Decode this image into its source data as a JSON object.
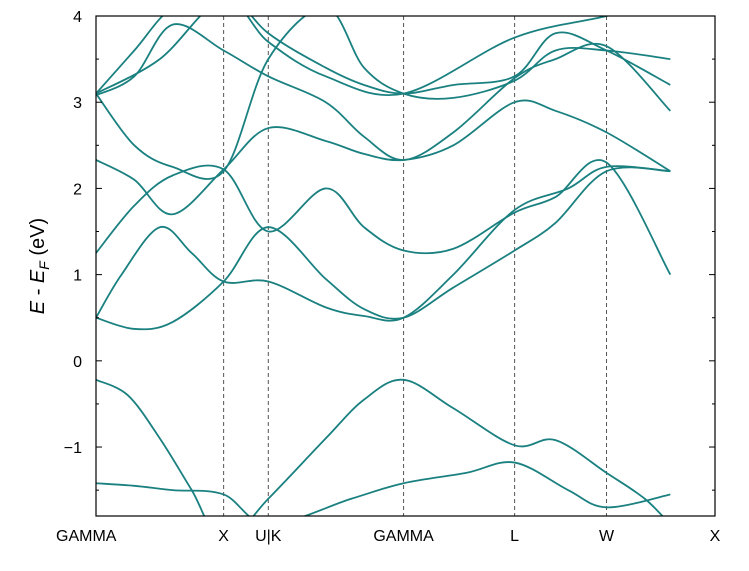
{
  "chart_data": {
    "type": "line",
    "title": "",
    "xlabel": "",
    "ylabel": "E - E_F (eV)",
    "ylabel_parts": {
      "e": "E",
      "sep": " - ",
      "ef": "E",
      "sub": "F",
      "unit": " (eV)"
    },
    "ylim": [
      -1.8,
      4.0
    ],
    "yticks": [
      -1,
      0,
      1,
      2,
      3,
      4
    ],
    "ytick_labels": [
      "−1",
      "0",
      "1",
      "2",
      "3",
      "4"
    ],
    "xlim": [
      0,
      4.85
    ],
    "kpoints": [
      {
        "label": "GAMMA",
        "x": 0.0
      },
      {
        "label": "X",
        "x": 1.0
      },
      {
        "label": "U|K",
        "x": 1.35
      },
      {
        "label": "GAMMA",
        "x": 2.41
      },
      {
        "label": "L",
        "x": 3.28
      },
      {
        "label": "W",
        "x": 4.0
      },
      {
        "label": "X",
        "x": 4.5
      }
    ],
    "vlines_at": [
      1.0,
      1.35,
      2.41,
      3.28,
      4.0
    ],
    "grid": false,
    "line_color": "#1a8080",
    "series": [
      {
        "x": [
          0,
          0.25,
          0.5,
          0.75,
          1.0,
          1.35,
          1.8,
          2.1,
          2.41,
          2.8,
          3.28,
          3.6,
          4.0,
          4.3,
          4.5
        ],
        "y": [
          -0.22,
          -0.4,
          -0.9,
          -1.5,
          -2.1,
          -1.6,
          -0.9,
          -0.45,
          -0.22,
          -0.55,
          -0.98,
          -0.92,
          -1.3,
          -1.6,
          -1.9
        ]
      },
      {
        "x": [
          0,
          0.3,
          0.6,
          1.0,
          1.35,
          2.0,
          2.41,
          2.9,
          3.28,
          3.7,
          4.0,
          4.5
        ],
        "y": [
          -1.42,
          -1.45,
          -1.5,
          -1.55,
          -1.9,
          -1.6,
          -1.42,
          -1.3,
          -1.18,
          -1.5,
          -1.7,
          -1.55
        ]
      },
      {
        "x": [
          0,
          0.3,
          0.6,
          1.0,
          1.35,
          1.8,
          2.1,
          2.41,
          2.8,
          3.28,
          3.6,
          4.0,
          4.5
        ],
        "y": [
          0.5,
          0.37,
          0.45,
          0.92,
          1.55,
          0.95,
          0.6,
          0.5,
          0.85,
          1.28,
          1.6,
          2.2,
          2.2
        ]
      },
      {
        "x": [
          0,
          0.2,
          0.5,
          0.75,
          1.0,
          1.35,
          1.8,
          2.1,
          2.41,
          2.8,
          3.28,
          3.7,
          4.0,
          4.5
        ],
        "y": [
          0.5,
          1.0,
          1.55,
          1.25,
          0.92,
          0.92,
          0.62,
          0.52,
          0.5,
          1.0,
          1.75,
          2.0,
          2.25,
          2.2
        ]
      },
      {
        "x": [
          0,
          0.3,
          0.6,
          1.0,
          1.35,
          1.8,
          2.1,
          2.41,
          2.8,
          3.28,
          3.6,
          4.0,
          4.5
        ],
        "y": [
          1.25,
          1.8,
          2.15,
          2.22,
          1.5,
          2.0,
          1.55,
          1.28,
          1.3,
          1.72,
          1.9,
          2.3,
          1.0
        ]
      },
      {
        "x": [
          0,
          0.3,
          0.6,
          1.0,
          1.35,
          1.8,
          2.1,
          2.41,
          2.8,
          3.28,
          3.6,
          4.0,
          4.5
        ],
        "y": [
          2.33,
          2.1,
          1.7,
          2.22,
          2.7,
          2.55,
          2.4,
          2.33,
          2.5,
          3.0,
          2.9,
          2.65,
          2.2
        ]
      },
      {
        "x": [
          0,
          0.3,
          0.6,
          1.0,
          1.35,
          1.8,
          2.1,
          2.41,
          2.8,
          3.28,
          3.6,
          4.0,
          4.5
        ],
        "y": [
          3.08,
          3.3,
          3.9,
          3.6,
          3.3,
          3.0,
          2.6,
          2.33,
          2.65,
          3.28,
          3.5,
          3.65,
          2.9
        ]
      },
      {
        "x": [
          0,
          0.3,
          0.6,
          1.0,
          1.35,
          1.8,
          2.1,
          2.41,
          2.8,
          3.28,
          3.6,
          4.0,
          4.5
        ],
        "y": [
          3.1,
          3.6,
          4.1,
          4.3,
          3.8,
          3.4,
          3.2,
          3.1,
          3.2,
          3.3,
          3.8,
          3.6,
          3.2
        ]
      },
      {
        "x": [
          0,
          0.3,
          0.6,
          1.0,
          1.35,
          1.8,
          2.1,
          2.41,
          2.8,
          3.28,
          3.6,
          4.0,
          4.5
        ],
        "y": [
          3.1,
          2.5,
          2.25,
          2.2,
          3.5,
          4.1,
          3.4,
          3.1,
          3.05,
          3.25,
          3.6,
          3.6,
          3.5
        ]
      },
      {
        "x": [
          0,
          0.5,
          1.0,
          1.35,
          1.8,
          2.41,
          3.28,
          4.0,
          4.5
        ],
        "y": [
          3.1,
          3.5,
          4.2,
          3.7,
          3.3,
          3.1,
          3.75,
          4.0,
          4.2
        ]
      }
    ]
  }
}
